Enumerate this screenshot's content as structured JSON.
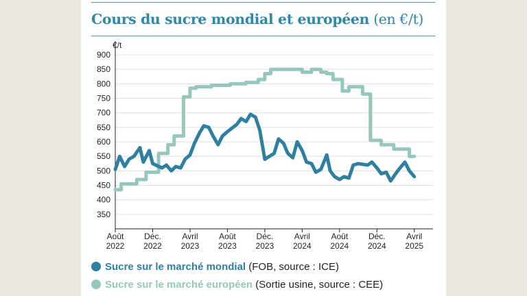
{
  "title": {
    "main": "Cours du sucre mondial et européen",
    "unit_note": "(en €/t)"
  },
  "colors": {
    "world": "#2f80a0",
    "europe": "#95c7bd",
    "grid": "#dedede",
    "accent": "#2f88a7"
  },
  "legend": [
    {
      "name": "Sucre sur le marché mondial",
      "note": "(FOB, source : ICE)",
      "color": "#2f80a0"
    },
    {
      "name": "Sucre sur le marché européen",
      "note": "(Sortie usine, source : CEE)",
      "color": "#95c7bd"
    }
  ],
  "chart_data": {
    "type": "line",
    "title": "Cours du sucre mondial et européen (en €/t)",
    "ylabel": "€/t",
    "xlabel": "",
    "ylim": [
      300,
      900
    ],
    "y_ticks": [
      350,
      400,
      450,
      500,
      550,
      600,
      650,
      700,
      750,
      800,
      850,
      900
    ],
    "x_ticks": [
      {
        "date": "2022-08",
        "label": [
          "Août",
          "2022"
        ]
      },
      {
        "date": "2022-12",
        "label": [
          "Déc.",
          "2022"
        ]
      },
      {
        "date": "2023-04",
        "label": [
          "Avril",
          "2023"
        ]
      },
      {
        "date": "2023-08",
        "label": [
          "Août",
          "2023"
        ]
      },
      {
        "date": "2023-12",
        "label": [
          "Déc.",
          "2023"
        ]
      },
      {
        "date": "2024-04",
        "label": [
          "Avril",
          "2024"
        ]
      },
      {
        "date": "2024-08",
        "label": [
          "Août",
          "2024"
        ]
      },
      {
        "date": "2024-12",
        "label": [
          "Déc.",
          "2024"
        ]
      },
      {
        "date": "2025-04",
        "label": [
          "Avril",
          "2025"
        ]
      }
    ],
    "xlim": [
      "2022-08",
      "2025-06"
    ],
    "grid": true,
    "series": [
      {
        "name": "Sucre sur le marché mondial",
        "color": "#2f80a0",
        "points": [
          [
            "2022-08",
            505
          ],
          [
            "2022-08-15",
            550
          ],
          [
            "2022-09",
            515
          ],
          [
            "2022-09-15",
            540
          ],
          [
            "2022-10",
            550
          ],
          [
            "2022-10-20",
            580
          ],
          [
            "2022-11",
            530
          ],
          [
            "2022-11-20",
            570
          ],
          [
            "2022-12",
            525
          ],
          [
            "2023-01",
            510
          ],
          [
            "2023-01-15",
            520
          ],
          [
            "2023-02",
            500
          ],
          [
            "2023-02-15",
            515
          ],
          [
            "2023-03",
            510
          ],
          [
            "2023-03-15",
            540
          ],
          [
            "2023-04",
            555
          ],
          [
            "2023-04-15",
            595
          ],
          [
            "2023-05",
            630
          ],
          [
            "2023-05-15",
            655
          ],
          [
            "2023-06",
            650
          ],
          [
            "2023-06-15",
            620
          ],
          [
            "2023-07",
            590
          ],
          [
            "2023-07-15",
            620
          ],
          [
            "2023-08",
            635
          ],
          [
            "2023-09",
            660
          ],
          [
            "2023-09-15",
            680
          ],
          [
            "2023-10",
            670
          ],
          [
            "2023-10-15",
            695
          ],
          [
            "2023-11",
            685
          ],
          [
            "2023-11-15",
            640
          ],
          [
            "2023-12",
            540
          ],
          [
            "2024-01",
            560
          ],
          [
            "2024-01-15",
            610
          ],
          [
            "2024-02",
            595
          ],
          [
            "2024-02-15",
            560
          ],
          [
            "2024-03",
            545
          ],
          [
            "2024-03-15",
            600
          ],
          [
            "2024-04",
            570
          ],
          [
            "2024-04-15",
            530
          ],
          [
            "2024-05",
            525
          ],
          [
            "2024-05-15",
            495
          ],
          [
            "2024-06",
            505
          ],
          [
            "2024-06-20",
            555
          ],
          [
            "2024-07",
            500
          ],
          [
            "2024-07-15",
            480
          ],
          [
            "2024-08",
            470
          ],
          [
            "2024-08-15",
            480
          ],
          [
            "2024-09",
            475
          ],
          [
            "2024-09-15",
            520
          ],
          [
            "2024-10",
            525
          ],
          [
            "2024-11",
            520
          ],
          [
            "2024-11-15",
            530
          ],
          [
            "2024-12",
            510
          ],
          [
            "2024-12-15",
            490
          ],
          [
            "2025-01",
            495
          ],
          [
            "2025-01-15",
            465
          ],
          [
            "2025-02",
            490
          ],
          [
            "2025-02-15",
            510
          ],
          [
            "2025-03",
            530
          ],
          [
            "2025-03-15",
            500
          ],
          [
            "2025-04",
            480
          ]
        ]
      },
      {
        "name": "Sucre sur le marché européen",
        "color": "#95c7bd",
        "points": [
          [
            "2022-08",
            435
          ],
          [
            "2022-08-20",
            435
          ],
          [
            "2022-08-20",
            455
          ],
          [
            "2022-10-10",
            455
          ],
          [
            "2022-10-10",
            470
          ],
          [
            "2022-11-10",
            470
          ],
          [
            "2022-11-10",
            495
          ],
          [
            "2022-12-20",
            495
          ],
          [
            "2022-12-20",
            560
          ],
          [
            "2023-01-20",
            560
          ],
          [
            "2023-01-20",
            590
          ],
          [
            "2023-02-10",
            590
          ],
          [
            "2023-02-10",
            620
          ],
          [
            "2023-03-10",
            620
          ],
          [
            "2023-03-10",
            755
          ],
          [
            "2023-04-01",
            755
          ],
          [
            "2023-04-01",
            785
          ],
          [
            "2023-04-20",
            785
          ],
          [
            "2023-04-20",
            790
          ],
          [
            "2023-06-10",
            790
          ],
          [
            "2023-06-10",
            795
          ],
          [
            "2023-08-10",
            795
          ],
          [
            "2023-08-10",
            800
          ],
          [
            "2023-10-01",
            800
          ],
          [
            "2023-10-01",
            805
          ],
          [
            "2023-11-10",
            805
          ],
          [
            "2023-11-10",
            815
          ],
          [
            "2023-12-01",
            815
          ],
          [
            "2023-12-01",
            835
          ],
          [
            "2023-12-20",
            835
          ],
          [
            "2023-12-20",
            850
          ],
          [
            "2024-04-01",
            850
          ],
          [
            "2024-04-01",
            840
          ],
          [
            "2024-05-01",
            840
          ],
          [
            "2024-05-01",
            850
          ],
          [
            "2024-06-01",
            850
          ],
          [
            "2024-06-01",
            840
          ],
          [
            "2024-06-20",
            840
          ],
          [
            "2024-06-20",
            835
          ],
          [
            "2024-07-10",
            835
          ],
          [
            "2024-07-10",
            815
          ],
          [
            "2024-08-10",
            815
          ],
          [
            "2024-08-10",
            775
          ],
          [
            "2024-09-01",
            775
          ],
          [
            "2024-09-01",
            790
          ],
          [
            "2024-10-15",
            790
          ],
          [
            "2024-10-15",
            765
          ],
          [
            "2024-11-10",
            765
          ],
          [
            "2024-11-10",
            605
          ],
          [
            "2024-12-15",
            605
          ],
          [
            "2024-12-15",
            590
          ],
          [
            "2025-01-25",
            590
          ],
          [
            "2025-01-25",
            575
          ],
          [
            "2025-03-15",
            575
          ],
          [
            "2025-03-15",
            550
          ],
          [
            "2025-04-01",
            550
          ]
        ]
      }
    ]
  }
}
